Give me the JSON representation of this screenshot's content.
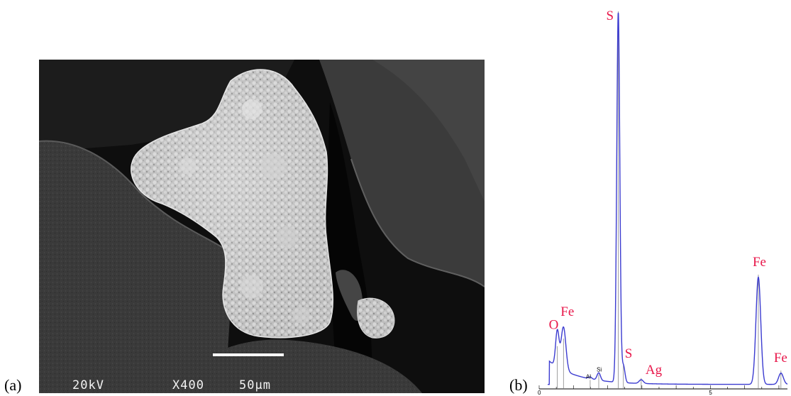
{
  "panel_a": {
    "label": "(a)",
    "voltage": "20kV",
    "magnification": "X400",
    "scale_bar_label": "50µm"
  },
  "panel_b": {
    "label": "(b)",
    "colors": {
      "spectrum": "#3b3bd0",
      "peak_label": "#e8174a"
    },
    "chart_data": {
      "type": "line",
      "title": "",
      "xlabel": "",
      "ylabel": "",
      "x_tick_labels": [
        "0",
        "5"
      ],
      "xlim": [
        0,
        6.7
      ],
      "ylim": [
        0,
        100
      ],
      "peaks": [
        {
          "element": "O",
          "x": 0.53,
          "y": 11
        },
        {
          "element": "Fe",
          "x": 0.71,
          "y": 13
        },
        {
          "element": "Al",
          "x": 1.49,
          "y": 2
        },
        {
          "element": "Si",
          "x": 1.74,
          "y": 3.5
        },
        {
          "element": "S",
          "x": 2.31,
          "y": 100
        },
        {
          "element": "S",
          "x": 2.46,
          "y": 6
        },
        {
          "element": "Ag",
          "x": 2.98,
          "y": 2.5
        },
        {
          "element": "Fe",
          "x": 6.4,
          "y": 30
        },
        {
          "element": "Fe",
          "x": 7.06,
          "y": 4.5
        }
      ],
      "peak_labels": [
        {
          "text": "O",
          "style": "large"
        },
        {
          "text": "Fe",
          "style": "large"
        },
        {
          "text": "Al",
          "style": "small"
        },
        {
          "text": "Si",
          "style": "small"
        },
        {
          "text": "S",
          "style": "large"
        },
        {
          "text": "S",
          "style": "large"
        },
        {
          "text": "Ag",
          "style": "large"
        },
        {
          "text": "Fe",
          "style": "large"
        },
        {
          "text": "Fe",
          "style": "large"
        }
      ]
    }
  }
}
